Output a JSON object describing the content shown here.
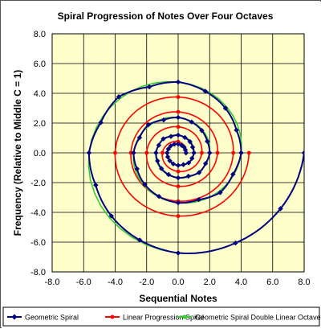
{
  "chart_data": {
    "type": "scatter",
    "title": "Spiral Progression of Notes Over Four Octaves",
    "xlabel": "Sequential Notes",
    "ylabel": "Frequency (Relative to Middle C = 1)",
    "xlim": [
      -8,
      8
    ],
    "ylim": [
      -8,
      8
    ],
    "x_ticks": [
      "-8.0",
      "-6.0",
      "-4.0",
      "-2.0",
      "0.0",
      "2.0",
      "4.0",
      "6.0",
      "8.0"
    ],
    "y_ticks": [
      "8.0",
      "6.0",
      "4.0",
      "2.0",
      "0.0",
      "-2.0",
      "-4.0",
      "-6.0",
      "-8.0"
    ],
    "grid": true,
    "legend_position": "bottom",
    "colors": {
      "plot_bg": "#FFFFCC",
      "geometric": "#000080",
      "linear": "#FF0000",
      "double_linear": "#33CC33",
      "grid": "#000000"
    },
    "series": [
      {
        "name": "Geometric Spiral",
        "marker": "diamond",
        "color": "#000080",
        "points": [
          [
            0.5,
            0.0
          ],
          [
            0.46,
            0.19
          ],
          [
            0.38,
            0.38
          ],
          [
            0.21,
            0.51
          ],
          [
            0.0,
            0.59
          ],
          [
            -0.24,
            0.58
          ],
          [
            -0.47,
            0.47
          ],
          [
            -0.62,
            0.26
          ],
          [
            -0.7,
            0.0
          ],
          [
            -0.66,
            -0.27
          ],
          [
            -0.53,
            -0.53
          ],
          [
            -0.31,
            -0.74
          ],
          [
            0.0,
            -0.84
          ],
          [
            0.33,
            -0.79
          ],
          [
            0.67,
            -0.67
          ],
          [
            0.88,
            -0.37
          ],
          [
            1.0,
            0.0
          ],
          [
            0.92,
            0.38
          ],
          [
            0.75,
            0.75
          ],
          [
            0.43,
            1.03
          ],
          [
            0.0,
            1.19
          ],
          [
            -0.46,
            1.1
          ],
          [
            -0.94,
            0.94
          ],
          [
            -1.23,
            0.51
          ],
          [
            -1.41,
            0.0
          ],
          [
            -1.31,
            -0.54
          ],
          [
            -1.06,
            -1.06
          ],
          [
            -0.61,
            -1.46
          ],
          [
            0.0,
            -1.68
          ],
          [
            0.65,
            -1.57
          ],
          [
            1.33,
            -1.33
          ],
          [
            1.74,
            -0.72
          ],
          [
            2.0,
            0.0
          ],
          [
            1.85,
            0.77
          ],
          [
            1.5,
            1.5
          ],
          [
            0.86,
            2.07
          ],
          [
            0.0,
            2.38
          ],
          [
            -0.92,
            2.21
          ],
          [
            -1.89,
            1.89
          ],
          [
            -2.45,
            1.02
          ],
          [
            -2.83,
            0.0
          ],
          [
            -2.61,
            -1.08
          ],
          [
            -2.12,
            -2.12
          ],
          [
            -1.22,
            -2.93
          ],
          [
            0.0,
            -3.36
          ],
          [
            1.31,
            -3.14
          ],
          [
            2.67,
            -2.67
          ],
          [
            3.48,
            -1.44
          ],
          [
            4.0,
            0.0
          ],
          [
            3.7,
            1.53
          ],
          [
            3.0,
            3.0
          ],
          [
            1.72,
            4.14
          ],
          [
            0.0,
            4.76
          ],
          [
            -1.83,
            4.43
          ],
          [
            -3.77,
            3.77
          ],
          [
            -4.91,
            2.03
          ],
          [
            -5.66,
            0.0
          ],
          [
            -5.23,
            -2.17
          ],
          [
            -4.24,
            -4.24
          ],
          [
            -2.44,
            -5.86
          ],
          [
            0.0,
            -6.73
          ],
          [
            3.64,
            -6.06
          ],
          [
            6.5,
            -3.75
          ],
          [
            8.0,
            0.0
          ]
        ]
      },
      {
        "name": "Linear Progression Spiral",
        "marker": "circle",
        "color": "#FF0000",
        "points": [
          [
            0.5,
            0.0
          ],
          [
            0.0,
            0.75
          ],
          [
            -1.0,
            0.0
          ],
          [
            0.0,
            -1.25
          ],
          [
            1.5,
            0.0
          ],
          [
            0.0,
            1.75
          ],
          [
            -2.0,
            0.0
          ],
          [
            0.0,
            -2.25
          ],
          [
            2.5,
            0.0
          ],
          [
            0.0,
            2.75
          ],
          [
            -3.0,
            0.0
          ],
          [
            0.0,
            -3.25
          ],
          [
            3.5,
            0.0
          ],
          [
            0.0,
            3.75
          ],
          [
            -4.0,
            0.0
          ],
          [
            0.0,
            -4.25
          ],
          [
            4.5,
            0.0
          ]
        ]
      },
      {
        "name": "Geometric Spiral Double Linear Octave",
        "marker": "circle-small",
        "color": "#33CC33",
        "points": [
          [
            1.0,
            0.0
          ],
          [
            0.0,
            1.19
          ],
          [
            -1.41,
            0.0
          ],
          [
            0.0,
            -1.68
          ],
          [
            2.0,
            0.0
          ],
          [
            0.0,
            2.38
          ],
          [
            -2.83,
            0.0
          ],
          [
            0.0,
            -3.36
          ],
          [
            4.0,
            0.0
          ],
          [
            0.0,
            4.76
          ],
          [
            -5.66,
            0.0
          ],
          [
            0.0,
            -6.73
          ],
          [
            3.64,
            -6.06
          ],
          [
            8.0,
            0.0
          ]
        ]
      }
    ]
  }
}
